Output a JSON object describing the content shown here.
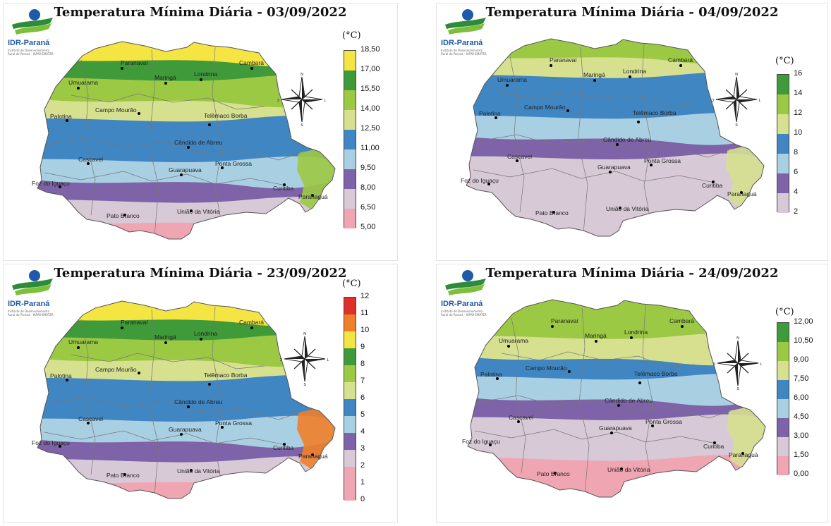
{
  "logo": {
    "name": "IDR-Paraná",
    "sub": "Instituto de Desenvolvimento Rural do Paraná - IAPAR-EMATER"
  },
  "cities": [
    {
      "name": "Paranavaí"
    },
    {
      "name": "Cambará"
    },
    {
      "name": "Umuarama"
    },
    {
      "name": "Maringá"
    },
    {
      "name": "Londrina"
    },
    {
      "name": "Campo Mourão"
    },
    {
      "name": "Palotina"
    },
    {
      "name": "Telêmaco Borba"
    },
    {
      "name": "Cândido de Abreu"
    },
    {
      "name": "Cascavel"
    },
    {
      "name": "Ponta Grossa"
    },
    {
      "name": "Guarapuava"
    },
    {
      "name": "Foz do Iguaçu"
    },
    {
      "name": "Curitiba"
    },
    {
      "name": "Paranaguá"
    },
    {
      "name": "Pato Branco"
    },
    {
      "name": "União da Vitória"
    }
  ],
  "compass": {
    "north": "N",
    "south": "S",
    "east": "L",
    "west": "O"
  },
  "panels": [
    {
      "title": "Temperatura Mínima Diária - 03/09/2022",
      "date": "03/09/2022",
      "legend_unit": "(°C)",
      "legend_ticks": [
        "18,50",
        "17,00",
        "15,50",
        "14,00",
        "12,50",
        "11,00",
        "9,50",
        "8,00",
        "6,50",
        "5,00"
      ],
      "legend_colors": [
        "#f4e542",
        "#3f9a3a",
        "#9cc944",
        "#d6e08f",
        "#3f86c3",
        "#a9cfe3",
        "#7e63a8",
        "#d8c9d6",
        "#f0a5b2"
      ]
    },
    {
      "title": "Temperatura Mínima Diária - 04/09/2022",
      "date": "04/09/2022",
      "legend_unit": "(°C)",
      "legend_ticks": [
        "16",
        "14",
        "12",
        "10",
        "8",
        "6",
        "4",
        "2"
      ],
      "legend_colors": [
        "#3f9a3a",
        "#9cc944",
        "#d6e08f",
        "#3f86c3",
        "#a9cfe3",
        "#7e63a8",
        "#d8c9d6"
      ]
    },
    {
      "title": "Temperatura Mínima Diária - 23/09/2022",
      "date": "23/09/2022",
      "legend_unit": "(°C)",
      "legend_ticks": [
        "12",
        "11",
        "10",
        "9",
        "8",
        "7",
        "6",
        "5",
        "4",
        "3",
        "2",
        "1",
        "0"
      ],
      "legend_colors": [
        "#e0302a",
        "#ef7f2a",
        "#f4e542",
        "#3f9a3a",
        "#9cc944",
        "#d6e08f",
        "#3f86c3",
        "#a9cfe3",
        "#7e63a8",
        "#d8c9d6",
        "#f0a5b2",
        "#f0a5b2"
      ]
    },
    {
      "title": "Temperatura Mínima Diária - 24/09/2022",
      "date": "24/09/2022",
      "legend_unit": "(°C)",
      "legend_ticks": [
        "12,00",
        "10,50",
        "9,00",
        "7,50",
        "6,00",
        "4,50",
        "3,00",
        "1,50",
        "0,00"
      ],
      "legend_colors": [
        "#3f9a3a",
        "#9cc944",
        "#d6e08f",
        "#3f86c3",
        "#a9cfe3",
        "#7e63a8",
        "#d8c9d6",
        "#f0a5b2"
      ]
    }
  ]
}
